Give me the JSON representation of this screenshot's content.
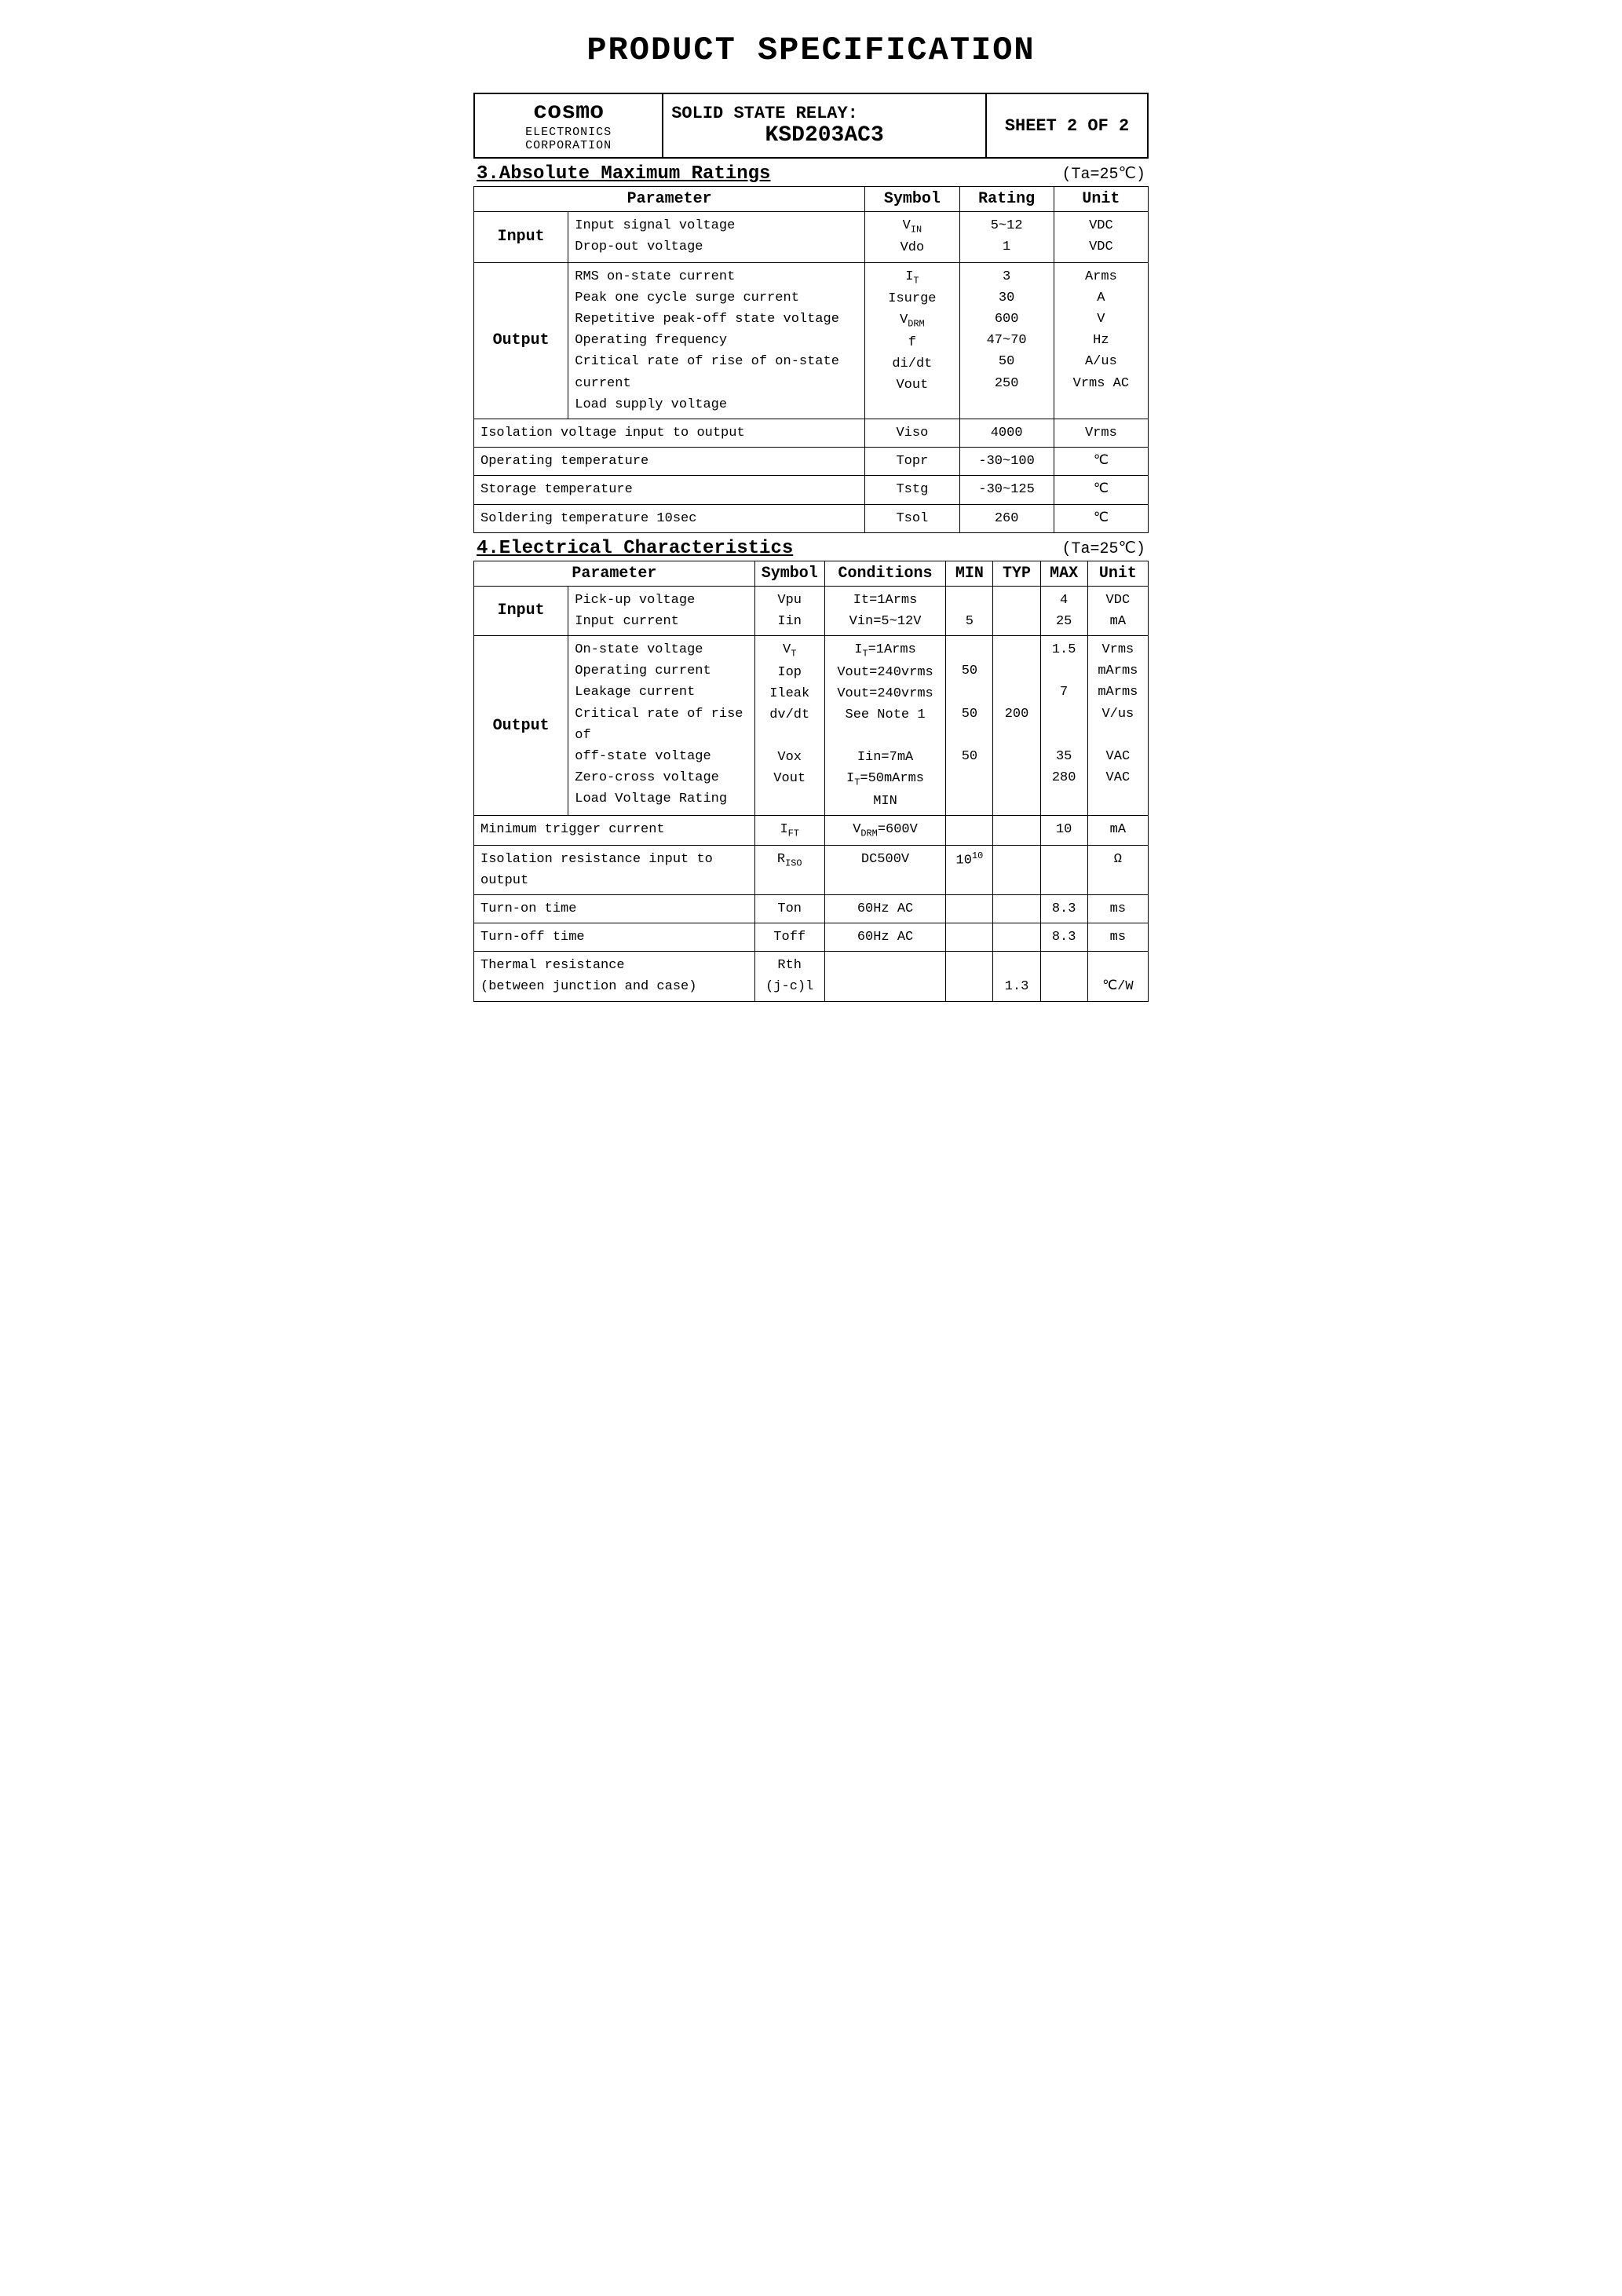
{
  "doc_title": "PRODUCT SPECIFICATION",
  "header": {
    "brand": "cosmo",
    "brand_sub": "ELECTRONICS CORPORATION",
    "product_line1": "SOLID STATE RELAY:",
    "product_line2": "KSD203AC3",
    "sheet": "SHEET 2 OF  2"
  },
  "section3": {
    "title": "3.Absolute Maximum Ratings",
    "condition": "(Ta=25℃)",
    "head": {
      "param": "Parameter",
      "symbol": "Symbol",
      "rating": "Rating",
      "unit": "Unit"
    },
    "rows": [
      {
        "cat": "Input",
        "params": [
          "Input signal voltage",
          "Drop-out voltage"
        ],
        "symbols": [
          "V<sub>IN</sub>",
          "Vdo"
        ],
        "ratings": [
          "5~12",
          "1"
        ],
        "units": [
          "VDC",
          "VDC"
        ]
      },
      {
        "cat": "Output",
        "params": [
          "RMS on-state current",
          "Peak one cycle surge current",
          "Repetitive peak-off state voltage",
          "Operating frequency",
          "Critical rate of rise of on-state current",
          "Load supply voltage"
        ],
        "symbols": [
          "I<sub>T</sub>",
          "Isurge",
          "V<sub>DRM</sub>",
          "f",
          "di/dt",
          "Vout"
        ],
        "ratings": [
          "3",
          "30",
          "600",
          "47~70",
          "50",
          "250"
        ],
        "units": [
          "Arms",
          "A",
          "V",
          "Hz",
          "A/us",
          "Vrms AC"
        ]
      },
      {
        "cat": "",
        "params": [
          "Isolation voltage input to output"
        ],
        "symbols": [
          "Viso"
        ],
        "ratings": [
          "4000"
        ],
        "units": [
          "Vrms"
        ]
      },
      {
        "cat": "",
        "params": [
          "Operating temperature"
        ],
        "symbols": [
          "Topr"
        ],
        "ratings": [
          "-30~100"
        ],
        "units": [
          "℃"
        ]
      },
      {
        "cat": "",
        "params": [
          "Storage temperature"
        ],
        "symbols": [
          "Tstg"
        ],
        "ratings": [
          "-30~125"
        ],
        "units": [
          "℃"
        ]
      },
      {
        "cat": "",
        "params": [
          "Soldering temperature 10sec"
        ],
        "symbols": [
          "Tsol"
        ],
        "ratings": [
          "260"
        ],
        "units": [
          "℃"
        ]
      }
    ]
  },
  "section4": {
    "title": "4.Electrical Characteristics",
    "condition": "(Ta=25℃)",
    "head": {
      "param": "Parameter",
      "symbol": "Symbol",
      "cond": "Conditions",
      "min": "MIN",
      "typ": "TYP",
      "max": "MAX",
      "unit": "Unit"
    },
    "rows": [
      {
        "cat": "Input",
        "params": [
          "Pick-up voltage",
          "Input current"
        ],
        "symbols": [
          "Vpu",
          "Iin"
        ],
        "conds": [
          "It=1Arms",
          "Vin=5~12V"
        ],
        "mins": [
          "",
          "5"
        ],
        "typs": [
          "",
          ""
        ],
        "maxs": [
          "4",
          "25"
        ],
        "units": [
          "VDC",
          "mA"
        ]
      },
      {
        "cat": "Output",
        "params": [
          "On-state voltage",
          "Operating current",
          "Leakage current",
          "Critical rate of rise of",
          "off-state voltage",
          "Zero-cross voltage",
          "Load Voltage Rating"
        ],
        "symbols": [
          "V<sub>T</sub>",
          "Iop",
          "Ileak",
          "dv/dt",
          "",
          "Vox",
          "Vout"
        ],
        "conds": [
          "I<sub>T</sub>=1Arms",
          "Vout=240vrms",
          "Vout=240vrms",
          "See Note 1",
          "",
          "Iin=7mA",
          "I<sub>T</sub>=50mArms MIN"
        ],
        "mins": [
          "",
          "50",
          "",
          "50",
          "",
          "50",
          ""
        ],
        "typs": [
          "",
          "",
          "",
          "200",
          "",
          "",
          ""
        ],
        "maxs": [
          "1.5",
          "",
          "7",
          "",
          "",
          "35",
          "280"
        ],
        "units": [
          "Vrms",
          "mArms",
          "mArms",
          "V/us",
          "",
          "VAC",
          "VAC"
        ]
      },
      {
        "cat": "",
        "span": true,
        "params": [
          "Minimum trigger current"
        ],
        "symbols": [
          "I<sub>FT</sub>"
        ],
        "conds": [
          "V<sub>DRM</sub>=600V"
        ],
        "mins": [
          ""
        ],
        "typs": [
          ""
        ],
        "maxs": [
          "10"
        ],
        "units": [
          "mA"
        ]
      },
      {
        "cat": "",
        "span": true,
        "params": [
          "Isolation resistance input to output"
        ],
        "symbols": [
          "R<sub>ISO</sub>"
        ],
        "conds": [
          "DC500V"
        ],
        "mins": [
          "10<sup>10</sup>"
        ],
        "typs": [
          ""
        ],
        "maxs": [
          ""
        ],
        "units": [
          "Ω"
        ]
      },
      {
        "cat": "",
        "span": true,
        "params": [
          "Turn-on time"
        ],
        "symbols": [
          "Ton"
        ],
        "conds": [
          "60Hz AC"
        ],
        "mins": [
          ""
        ],
        "typs": [
          ""
        ],
        "maxs": [
          "8.3"
        ],
        "units": [
          "ms"
        ]
      },
      {
        "cat": "",
        "span": true,
        "params": [
          "Turn-off time"
        ],
        "symbols": [
          "Toff"
        ],
        "conds": [
          "60Hz AC"
        ],
        "mins": [
          ""
        ],
        "typs": [
          ""
        ],
        "maxs": [
          "8.3"
        ],
        "units": [
          "ms"
        ]
      },
      {
        "cat": "",
        "span": true,
        "params": [
          "Thermal resistance",
          "(between junction and case)"
        ],
        "symbols": [
          "Rth",
          "(j-c)l"
        ],
        "conds": [
          "",
          ""
        ],
        "mins": [
          "",
          ""
        ],
        "typs": [
          "",
          "1.3"
        ],
        "maxs": [
          "",
          ""
        ],
        "units": [
          "",
          "℃/W"
        ]
      }
    ]
  }
}
